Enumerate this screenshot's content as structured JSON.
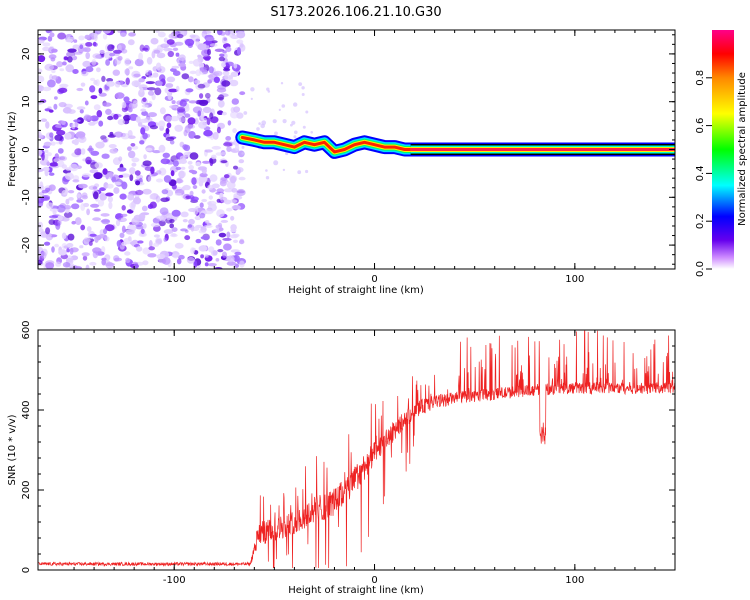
{
  "title": "S173.2026.106.21.10.G30",
  "chart_data": [
    {
      "type": "heatmap",
      "name": "spectrogram",
      "xlabel": "Height of straight line (km)",
      "ylabel": "Frequency (Hz)",
      "xlim": [
        -168,
        150
      ],
      "ylim": [
        -25,
        25
      ],
      "xticks": [
        -100,
        0,
        100
      ],
      "xtick_labels": [
        "-100",
        "0",
        "100"
      ],
      "yticks": [
        -20,
        -10,
        0,
        10,
        20
      ],
      "ytick_labels": [
        "-20",
        "-10",
        "0",
        "10",
        "20"
      ],
      "noise_region_x": [
        -168,
        -66
      ],
      "signal_ridge": {
        "x": [
          -66,
          -60,
          -55,
          -50,
          -45,
          -40,
          -35,
          -30,
          -25,
          -20,
          -15,
          -10,
          -5,
          0,
          5,
          10,
          15,
          20,
          150
        ],
        "freq": [
          2.5,
          2.0,
          1.5,
          1.5,
          1.0,
          0.5,
          1.5,
          1.0,
          1.5,
          -0.5,
          0.0,
          1.0,
          1.5,
          1.0,
          0.5,
          0.5,
          0.0,
          0.0,
          0.0
        ]
      },
      "colorbar": {
        "label": "Normalized spectral amplitude",
        "range": [
          0,
          1
        ],
        "ticks": [
          0.0,
          0.2,
          0.4,
          0.6,
          0.8
        ],
        "tick_labels": [
          "0.0",
          "0.2",
          "0.4",
          "0.6",
          "0.8"
        ],
        "colors": [
          "#ffffff",
          "#cc88ff",
          "#6600ee",
          "#0000ff",
          "#00ffff",
          "#00ff00",
          "#ffff00",
          "#ff8800",
          "#ff0000",
          "#ff0088"
        ]
      }
    },
    {
      "type": "line",
      "name": "snr",
      "xlabel": "Height of straight line (km)",
      "ylabel": "SNR (10 * v/v)",
      "xlim": [
        -168,
        150
      ],
      "ylim": [
        0,
        600
      ],
      "xticks": [
        -100,
        0,
        100
      ],
      "xtick_labels": [
        "-100",
        "0",
        "100"
      ],
      "yticks": [
        0,
        200,
        400,
        600
      ],
      "ytick_labels": [
        "0",
        "200",
        "400",
        "600"
      ],
      "color": "#ee2222",
      "envelope": {
        "x": [
          -168,
          -62,
          -58,
          -50,
          -45,
          -40,
          -30,
          -20,
          -12,
          -5,
          0,
          10,
          20,
          30,
          40,
          60,
          80,
          100,
          120,
          150
        ],
        "base": [
          15,
          15,
          90,
          100,
          110,
          120,
          150,
          170,
          210,
          260,
          290,
          350,
          400,
          420,
          430,
          440,
          450,
          455,
          455,
          455
        ],
        "spread": [
          8,
          8,
          60,
          60,
          60,
          60,
          70,
          70,
          70,
          70,
          60,
          50,
          40,
          35,
          30,
          30,
          30,
          30,
          30,
          30
        ]
      }
    }
  ]
}
